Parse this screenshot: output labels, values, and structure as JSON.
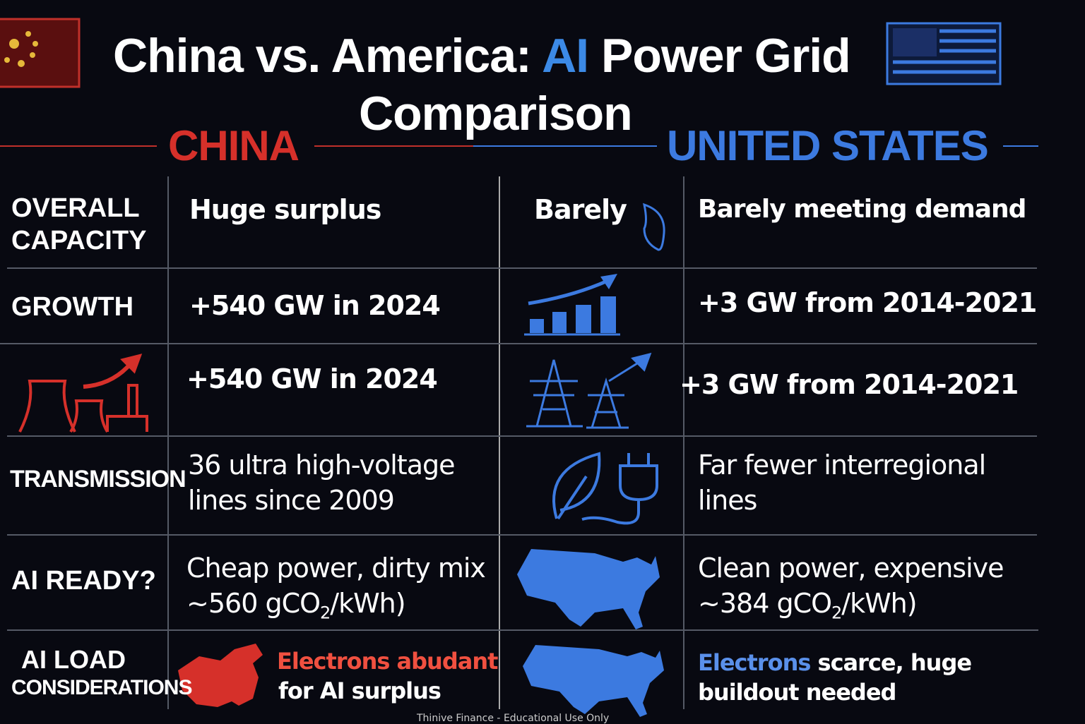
{
  "header": {
    "title_part1": "China vs. America: ",
    "title_highlight": "AI",
    "title_part2": " Power Grid",
    "title_line2": "Comparison",
    "china": "CHINA",
    "us": "UNITED STATES"
  },
  "rows": [
    {
      "label": "OVERALL CAPACITY",
      "china": "Huge surplus",
      "us_short": "Barely",
      "us": "Barely meeting demand"
    },
    {
      "label": "GROWTH",
      "china": "+540 GW in 2024",
      "us": "+3 GW from 2014-2021"
    },
    {
      "china": "+540 GW in 2024",
      "us": "+3 GW from 2014-2021"
    },
    {
      "label": "TRANSMISSION",
      "china": "36 ultra high-voltage lines since 2009",
      "us": "Far fewer interregional lines"
    },
    {
      "label": "AI READY?",
      "china_line1": "Cheap power, dirty mix",
      "china_line2": [
        "~560 gCO",
        "2",
        "/kWh)"
      ],
      "us_line1": "Clean power, expensive",
      "us_line2": [
        "~384 gCO",
        "2",
        "/kWh)"
      ]
    },
    {
      "label_line1": "AI LOAD",
      "label_line2": "CONSIDERATIONS",
      "china_highlight": "Electrons abudant",
      "china_rest": "for AI surplus",
      "us_highlight": "Electrons",
      "us_rest": " scarce, huge buildout needed"
    }
  ],
  "footer": "Thinive Finance - Educational Use Only"
}
